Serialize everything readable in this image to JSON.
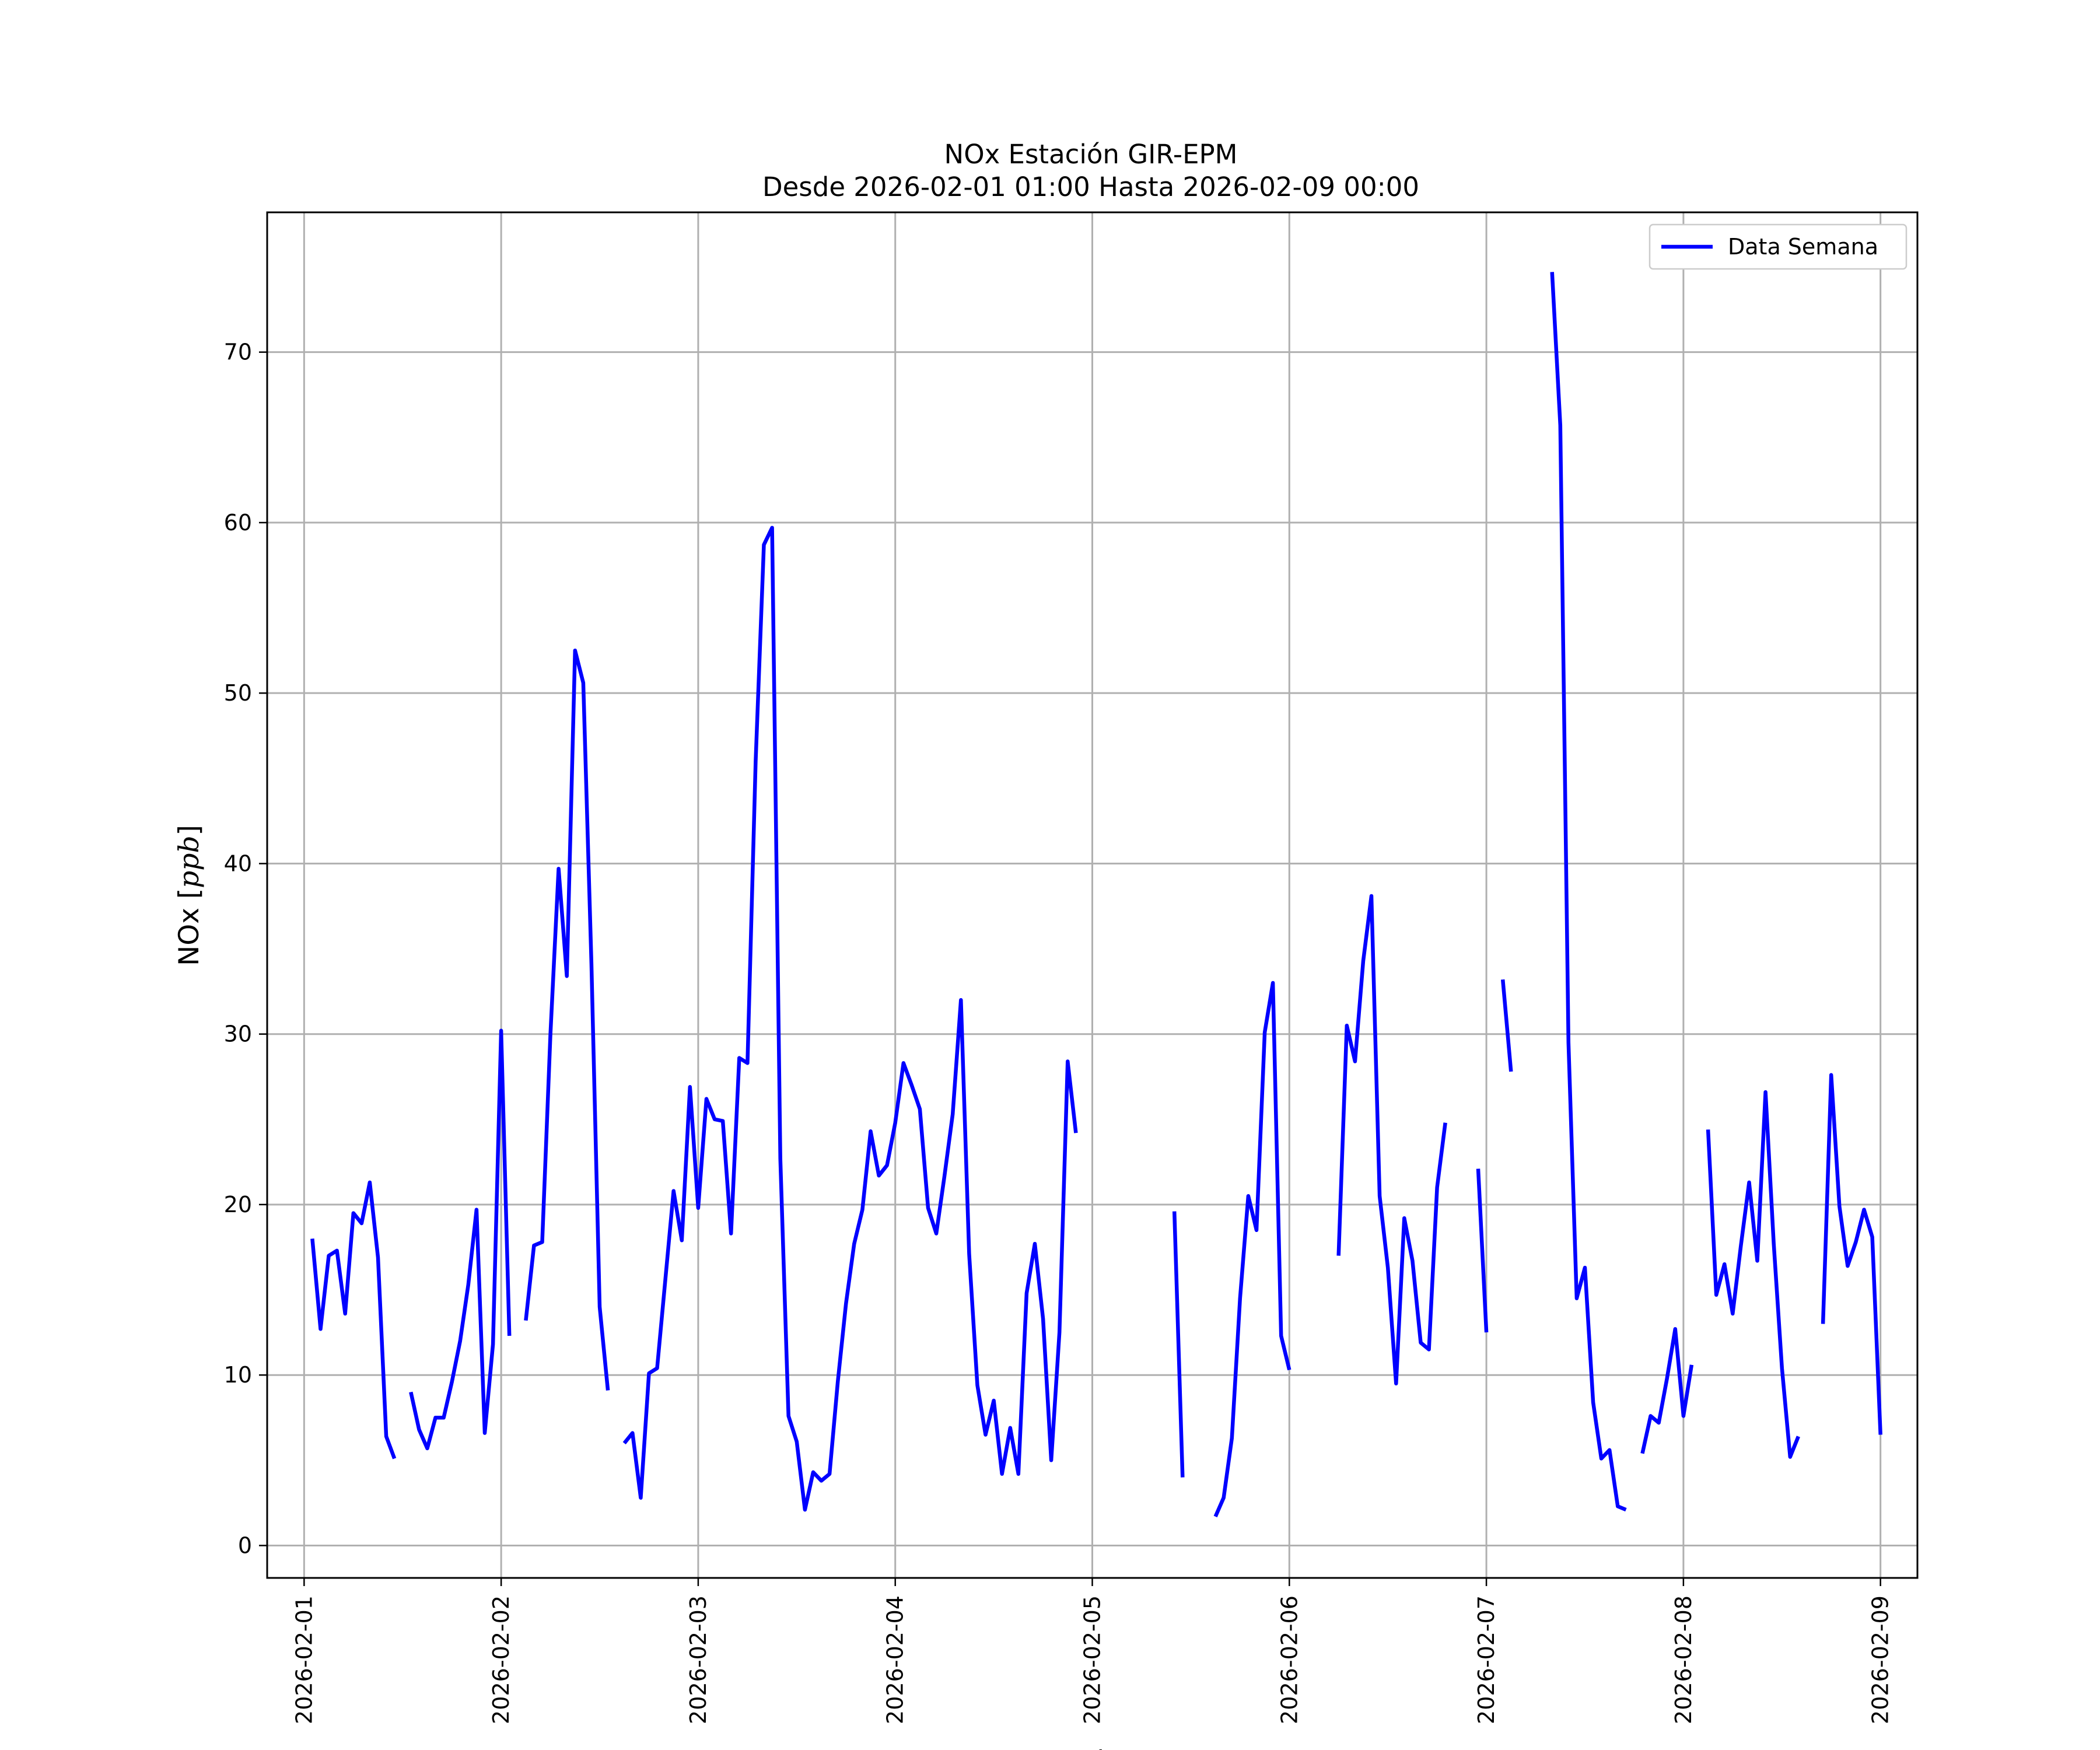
{
  "chart_data": {
    "type": "line",
    "title": "NOx Estación GIR-EPM",
    "subtitle": "Desde 2026-02-01 01:00 Hasta 2026-02-09 00:00",
    "xlabel": "Fecha",
    "ylabel": "NOx [ppb]",
    "ylabel_parts": {
      "prefix": "NOx [",
      "unit": "ppb",
      "suffix": "]"
    },
    "xlim": [
      "2026-01-31 19:30",
      "2026-02-09 04:30"
    ],
    "ylim": [
      -1.9,
      78.2
    ],
    "grid": true,
    "legend_position": "top-right",
    "x_ticks": [
      "2026-02-01",
      "2026-02-02",
      "2026-02-03",
      "2026-02-04",
      "2026-02-05",
      "2026-02-06",
      "2026-02-07",
      "2026-02-08",
      "2026-02-09"
    ],
    "y_ticks": [
      "0",
      "10",
      "20",
      "30",
      "40",
      "50",
      "60",
      "70"
    ],
    "series": [
      {
        "name": "Data Semana",
        "color": "#0000ff",
        "segments": [
          [
            [
              "2026-02-01 01:00",
              18.0
            ],
            [
              "2026-02-01 02:00",
              12.7
            ],
            [
              "2026-02-01 03:00",
              17.0
            ],
            [
              "2026-02-01 04:00",
              17.3
            ],
            [
              "2026-02-01 05:00",
              13.6
            ],
            [
              "2026-02-01 06:00",
              19.5
            ],
            [
              "2026-02-01 07:00",
              18.9
            ],
            [
              "2026-02-01 08:00",
              21.3
            ],
            [
              "2026-02-01 09:00",
              16.9
            ],
            [
              "2026-02-01 10:00",
              6.4
            ],
            [
              "2026-02-01 11:00",
              5.1
            ]
          ],
          [
            [
              "2026-02-01 13:00",
              9.0
            ],
            [
              "2026-02-01 14:00",
              6.8
            ],
            [
              "2026-02-01 15:00",
              5.7
            ],
            [
              "2026-02-01 16:00",
              7.5
            ],
            [
              "2026-02-01 17:00",
              7.5
            ],
            [
              "2026-02-01 18:00",
              9.6
            ],
            [
              "2026-02-01 19:00",
              12.0
            ],
            [
              "2026-02-01 20:00",
              15.3
            ],
            [
              "2026-02-01 21:00",
              19.7
            ],
            [
              "2026-02-01 22:00",
              6.6
            ],
            [
              "2026-02-01 23:00",
              11.8
            ],
            [
              "2026-02-02 00:00",
              30.2
            ],
            [
              "2026-02-02 01:00",
              12.3
            ]
          ],
          [
            [
              "2026-02-02 03:00",
              13.2
            ],
            [
              "2026-02-02 04:00",
              17.6
            ],
            [
              "2026-02-02 05:00",
              17.8
            ],
            [
              "2026-02-02 06:00",
              30.0
            ],
            [
              "2026-02-02 07:00",
              39.7
            ],
            [
              "2026-02-02 08:00",
              33.4
            ],
            [
              "2026-02-02 09:00",
              52.5
            ],
            [
              "2026-02-02 10:00",
              50.6
            ],
            [
              "2026-02-02 11:00",
              34.1
            ],
            [
              "2026-02-02 12:00",
              14.0
            ],
            [
              "2026-02-02 13:00",
              9.1
            ]
          ],
          [
            [
              "2026-02-02 15:00",
              6.0
            ],
            [
              "2026-02-02 16:00",
              6.6
            ],
            [
              "2026-02-02 17:00",
              2.8
            ],
            [
              "2026-02-02 18:00",
              10.1
            ],
            [
              "2026-02-02 19:00",
              10.4
            ],
            [
              "2026-02-02 20:00",
              15.6
            ],
            [
              "2026-02-02 21:00",
              20.8
            ],
            [
              "2026-02-02 22:00",
              17.9
            ],
            [
              "2026-02-02 23:00",
              26.9
            ],
            [
              "2026-02-03 00:00",
              19.8
            ],
            [
              "2026-02-03 01:00",
              26.2
            ],
            [
              "2026-02-03 02:00",
              25.0
            ],
            [
              "2026-02-03 03:00",
              24.9
            ],
            [
              "2026-02-03 04:00",
              18.3
            ],
            [
              "2026-02-03 05:00",
              28.6
            ],
            [
              "2026-02-03 06:00",
              28.3
            ],
            [
              "2026-02-03 07:00",
              46.0
            ],
            [
              "2026-02-03 08:00",
              58.7
            ],
            [
              "2026-02-03 09:00",
              59.7
            ],
            [
              "2026-02-03 10:00",
              22.7
            ],
            [
              "2026-02-03 11:00",
              7.6
            ],
            [
              "2026-02-03 12:00",
              6.1
            ],
            [
              "2026-02-03 13:00",
              2.1
            ],
            [
              "2026-02-03 14:00",
              4.3
            ],
            [
              "2026-02-03 15:00",
              3.8
            ],
            [
              "2026-02-03 16:00",
              4.2
            ],
            [
              "2026-02-03 17:00",
              9.6
            ],
            [
              "2026-02-03 18:00",
              14.2
            ],
            [
              "2026-02-03 19:00",
              17.7
            ],
            [
              "2026-02-03 20:00",
              19.7
            ],
            [
              "2026-02-03 21:00",
              24.3
            ],
            [
              "2026-02-03 22:00",
              21.7
            ],
            [
              "2026-02-03 23:00",
              22.3
            ],
            [
              "2026-02-04 00:00",
              24.8
            ],
            [
              "2026-02-04 01:00",
              28.3
            ],
            [
              "2026-02-04 02:00",
              27.0
            ],
            [
              "2026-02-04 03:00",
              25.6
            ],
            [
              "2026-02-04 04:00",
              19.8
            ],
            [
              "2026-02-04 05:00",
              18.3
            ],
            [
              "2026-02-04 06:00",
              21.7
            ],
            [
              "2026-02-04 07:00",
              25.3
            ],
            [
              "2026-02-04 08:00",
              32.0
            ],
            [
              "2026-02-04 09:00",
              17.1
            ],
            [
              "2026-02-04 10:00",
              9.4
            ],
            [
              "2026-02-04 11:00",
              6.5
            ],
            [
              "2026-02-04 12:00",
              8.5
            ],
            [
              "2026-02-04 13:00",
              4.2
            ],
            [
              "2026-02-04 14:00",
              6.9
            ],
            [
              "2026-02-04 15:00",
              4.2
            ],
            [
              "2026-02-04 16:00",
              14.8
            ],
            [
              "2026-02-04 17:00",
              17.7
            ],
            [
              "2026-02-04 18:00",
              13.3
            ],
            [
              "2026-02-04 19:00",
              5.0
            ],
            [
              "2026-02-04 20:00",
              12.5
            ],
            [
              "2026-02-04 21:00",
              28.4
            ],
            [
              "2026-02-04 22:00",
              24.2
            ]
          ],
          [
            [
              "2026-02-05 10:00",
              19.6
            ],
            [
              "2026-02-05 11:00",
              4.0
            ]
          ],
          [
            [
              "2026-02-05 15:00",
              1.7
            ],
            [
              "2026-02-05 16:00",
              2.8
            ],
            [
              "2026-02-05 17:00",
              6.3
            ],
            [
              "2026-02-05 18:00",
              14.5
            ],
            [
              "2026-02-05 19:00",
              20.5
            ],
            [
              "2026-02-05 20:00",
              18.5
            ],
            [
              "2026-02-05 21:00",
              30.1
            ],
            [
              "2026-02-05 22:00",
              33.0
            ],
            [
              "2026-02-05 23:00",
              12.3
            ],
            [
              "2026-02-06 00:00",
              10.3
            ]
          ],
          [
            [
              "2026-02-06 06:00",
              17.0
            ],
            [
              "2026-02-06 07:00",
              30.5
            ],
            [
              "2026-02-06 08:00",
              28.4
            ],
            [
              "2026-02-06 09:00",
              34.3
            ],
            [
              "2026-02-06 10:00",
              38.1
            ],
            [
              "2026-02-06 11:00",
              20.5
            ],
            [
              "2026-02-06 12:00",
              16.3
            ],
            [
              "2026-02-06 13:00",
              9.5
            ],
            [
              "2026-02-06 14:00",
              19.2
            ],
            [
              "2026-02-06 15:00",
              16.7
            ],
            [
              "2026-02-06 16:00",
              11.9
            ],
            [
              "2026-02-06 17:00",
              11.5
            ],
            [
              "2026-02-06 18:00",
              21.0
            ],
            [
              "2026-02-06 19:00",
              24.8
            ]
          ],
          [
            [
              "2026-02-06 23:00",
              22.1
            ],
            [
              "2026-02-07 00:00",
              12.5
            ]
          ],
          [
            [
              "2026-02-07 02:00",
              33.2
            ],
            [
              "2026-02-07 03:00",
              27.8
            ]
          ],
          [
            [
              "2026-02-07 08:00",
              74.7
            ],
            [
              "2026-02-07 09:00",
              65.7
            ],
            [
              "2026-02-07 10:00",
              29.5
            ],
            [
              "2026-02-07 11:00",
              14.5
            ],
            [
              "2026-02-07 12:00",
              16.3
            ],
            [
              "2026-02-07 13:00",
              8.4
            ],
            [
              "2026-02-07 14:00",
              5.1
            ],
            [
              "2026-02-07 15:00",
              5.6
            ],
            [
              "2026-02-07 16:00",
              2.3
            ],
            [
              "2026-02-07 17:00",
              2.1
            ]
          ],
          [
            [
              "2026-02-07 19:00",
              5.4
            ],
            [
              "2026-02-07 20:00",
              7.6
            ],
            [
              "2026-02-07 21:00",
              7.2
            ],
            [
              "2026-02-07 22:00",
              9.8
            ],
            [
              "2026-02-07 23:00",
              12.7
            ],
            [
              "2026-02-08 00:00",
              7.6
            ],
            [
              "2026-02-08 01:00",
              10.6
            ]
          ],
          [
            [
              "2026-02-08 03:00",
              24.4
            ],
            [
              "2026-02-08 04:00",
              14.7
            ],
            [
              "2026-02-08 05:00",
              16.5
            ],
            [
              "2026-02-08 06:00",
              13.6
            ],
            [
              "2026-02-08 07:00",
              17.6
            ],
            [
              "2026-02-08 08:00",
              21.3
            ],
            [
              "2026-02-08 09:00",
              16.7
            ],
            [
              "2026-02-08 10:00",
              26.6
            ],
            [
              "2026-02-08 11:00",
              17.7
            ],
            [
              "2026-02-08 12:00",
              10.4
            ],
            [
              "2026-02-08 13:00",
              5.2
            ],
            [
              "2026-02-08 14:00",
              6.4
            ]
          ],
          [
            [
              "2026-02-08 17:00",
              13.0
            ],
            [
              "2026-02-08 18:00",
              27.6
            ],
            [
              "2026-02-08 19:00",
              19.9
            ],
            [
              "2026-02-08 20:00",
              16.4
            ],
            [
              "2026-02-08 21:00",
              17.8
            ],
            [
              "2026-02-08 22:00",
              19.7
            ],
            [
              "2026-02-08 23:00",
              18.1
            ],
            [
              "2026-02-09 00:00",
              6.5
            ]
          ]
        ]
      }
    ]
  }
}
